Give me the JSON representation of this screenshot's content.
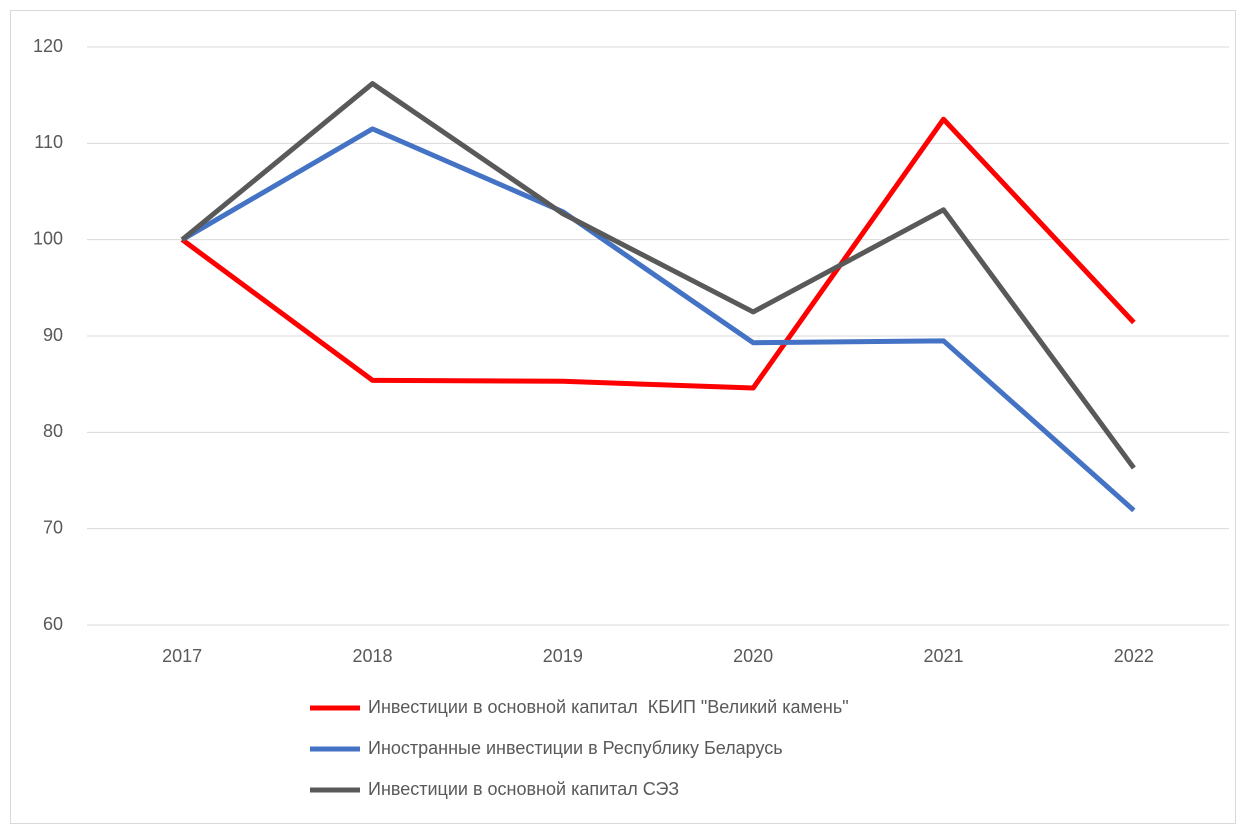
{
  "chart_data": {
    "type": "line",
    "categories": [
      "2017",
      "2018",
      "2019",
      "2020",
      "2021",
      "2022"
    ],
    "series": [
      {
        "name": "Инвестиции в основной капитал  КБИП \"Великий камень\"",
        "color": "#ff0000",
        "values": [
          100,
          85.4,
          85.3,
          84.6,
          112.5,
          91.4
        ]
      },
      {
        "name": "Иностранные инвестиции в Республику Беларусь",
        "color": "#4472c4",
        "values": [
          100,
          111.5,
          102.9,
          89.3,
          89.5,
          71.9
        ]
      },
      {
        "name": "Инвестиции в основной капитал СЭЗ",
        "color": "#595959",
        "values": [
          100,
          116.2,
          102.7,
          92.5,
          103.1,
          76.3
        ]
      }
    ],
    "ylim": [
      60,
      120
    ],
    "yticks": [
      60,
      70,
      80,
      90,
      100,
      110,
      120
    ],
    "grid": true,
    "legend": "bottom"
  }
}
